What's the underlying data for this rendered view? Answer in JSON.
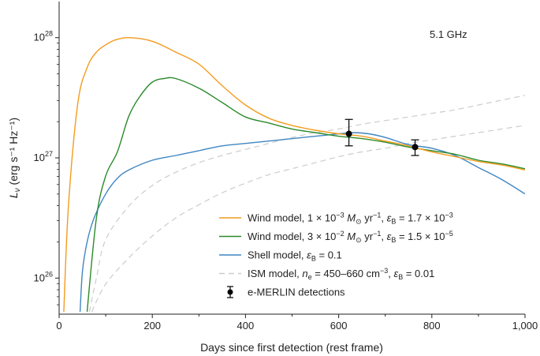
{
  "chart_data": {
    "type": "line",
    "annotation": "5.1 GHz",
    "xlabel": "Days since first detection (rest frame)",
    "ylabel": "Lν (erg s⁻¹ Hz⁻¹)",
    "ylabel_main": "L",
    "ylabel_sub": "ν",
    "ylabel_units": " (erg s⁻¹ Hz⁻¹)",
    "xlim": [
      0,
      1000
    ],
    "ylim_log10": [
      25.7,
      28.3
    ],
    "yscale": "log",
    "xticks": [
      0,
      200,
      400,
      600,
      800,
      1000
    ],
    "xtick_labels": [
      "0",
      "200",
      "400",
      "600",
      "800",
      "1,000"
    ],
    "yticks": [
      {
        "base": "10",
        "exp": "26",
        "log": 26
      },
      {
        "base": "10",
        "exp": "27",
        "log": 27
      },
      {
        "base": "10",
        "exp": "28",
        "log": 28
      }
    ],
    "series": [
      {
        "name": "wind1",
        "color": "#f39c1f",
        "dash": "solid",
        "points": [
          [
            10,
            25.72
          ],
          [
            20,
            26.6
          ],
          [
            40,
            27.45
          ],
          [
            60,
            27.75
          ],
          [
            80,
            27.88
          ],
          [
            100,
            27.94
          ],
          [
            120,
            27.98
          ],
          [
            150,
            28.0
          ],
          [
            200,
            27.97
          ],
          [
            250,
            27.88
          ],
          [
            300,
            27.78
          ],
          [
            350,
            27.6
          ],
          [
            400,
            27.44
          ],
          [
            450,
            27.33
          ],
          [
            500,
            27.27
          ],
          [
            550,
            27.23
          ],
          [
            600,
            27.2
          ],
          [
            650,
            27.18
          ],
          [
            700,
            27.14
          ],
          [
            750,
            27.1
          ],
          [
            800,
            27.05
          ],
          [
            850,
            27.01
          ],
          [
            900,
            26.97
          ],
          [
            950,
            26.94
          ],
          [
            1000,
            26.9
          ]
        ]
      },
      {
        "name": "wind2",
        "color": "#2b8a2b",
        "dash": "solid",
        "points": [
          [
            60,
            25.72
          ],
          [
            80,
            26.5
          ],
          [
            100,
            26.85
          ],
          [
            125,
            27.05
          ],
          [
            150,
            27.35
          ],
          [
            175,
            27.52
          ],
          [
            200,
            27.63
          ],
          [
            225,
            27.66
          ],
          [
            250,
            27.66
          ],
          [
            300,
            27.58
          ],
          [
            350,
            27.46
          ],
          [
            400,
            27.34
          ],
          [
            450,
            27.29
          ],
          [
            500,
            27.24
          ],
          [
            550,
            27.21
          ],
          [
            600,
            27.18
          ],
          [
            650,
            27.16
          ],
          [
            700,
            27.13
          ],
          [
            750,
            27.09
          ],
          [
            800,
            27.06
          ],
          [
            850,
            27.03
          ],
          [
            900,
            26.98
          ],
          [
            950,
            26.95
          ],
          [
            1000,
            26.91
          ]
        ]
      },
      {
        "name": "shell",
        "color": "#3f86c2",
        "dash": "solid",
        "points": [
          [
            45,
            25.72
          ],
          [
            50,
            26.05
          ],
          [
            60,
            26.3
          ],
          [
            75,
            26.5
          ],
          [
            100,
            26.7
          ],
          [
            125,
            26.83
          ],
          [
            150,
            26.9
          ],
          [
            200,
            26.98
          ],
          [
            250,
            27.02
          ],
          [
            300,
            27.06
          ],
          [
            350,
            27.1
          ],
          [
            400,
            27.12
          ],
          [
            450,
            27.14
          ],
          [
            500,
            27.16
          ],
          [
            550,
            27.18
          ],
          [
            600,
            27.2
          ],
          [
            630,
            27.21
          ],
          [
            665,
            27.2
          ],
          [
            700,
            27.17
          ],
          [
            750,
            27.11
          ],
          [
            800,
            27.08
          ],
          [
            850,
            27.02
          ],
          [
            900,
            26.92
          ],
          [
            950,
            26.82
          ],
          [
            1000,
            26.7
          ]
        ]
      },
      {
        "name": "ism1",
        "color": "#cccccc",
        "dash": "dashed",
        "points": [
          [
            65,
            25.72
          ],
          [
            80,
            26.0
          ],
          [
            100,
            26.32
          ],
          [
            150,
            26.6
          ],
          [
            200,
            26.77
          ],
          [
            250,
            26.88
          ],
          [
            300,
            26.96
          ],
          [
            350,
            27.02
          ],
          [
            400,
            27.07
          ],
          [
            450,
            27.12
          ],
          [
            500,
            27.17
          ],
          [
            550,
            27.21
          ],
          [
            600,
            27.24
          ],
          [
            650,
            27.28
          ],
          [
            700,
            27.31
          ],
          [
            750,
            27.34
          ],
          [
            800,
            27.37
          ],
          [
            850,
            27.4
          ],
          [
            900,
            27.44
          ],
          [
            950,
            27.48
          ],
          [
            1000,
            27.52
          ]
        ]
      },
      {
        "name": "ism2",
        "color": "#cccccc",
        "dash": "dashed",
        "points": [
          [
            70,
            25.72
          ],
          [
            100,
            25.95
          ],
          [
            150,
            26.17
          ],
          [
            200,
            26.35
          ],
          [
            250,
            26.5
          ],
          [
            300,
            26.61
          ],
          [
            350,
            26.71
          ],
          [
            400,
            26.79
          ],
          [
            450,
            26.86
          ],
          [
            500,
            26.91
          ],
          [
            550,
            26.96
          ],
          [
            600,
            27.01
          ],
          [
            650,
            27.05
          ],
          [
            700,
            27.08
          ],
          [
            750,
            27.12
          ],
          [
            800,
            27.15
          ],
          [
            850,
            27.18
          ],
          [
            900,
            27.21
          ],
          [
            950,
            27.24
          ],
          [
            1000,
            27.27
          ]
        ]
      }
    ],
    "detections": [
      {
        "x": 622,
        "y": 27.2,
        "y_lo": 27.1,
        "y_hi": 27.32
      },
      {
        "x": 764,
        "y": 27.09,
        "y_lo": 27.02,
        "y_hi": 27.15
      }
    ],
    "legend_position": "lower-right",
    "legend": [
      {
        "key": "wind1",
        "color": "#f39c1f",
        "style": "line",
        "text": "Wind model, 1 × 10⁻³ M⊙ yr⁻¹, εB = 1.7 × 10⁻³",
        "parts": [
          {
            "t": "Wind model, 1 × 10"
          },
          {
            "t": "−3",
            "sup": true
          },
          {
            "t": " "
          },
          {
            "t": "M",
            "it": true
          },
          {
            "t": "⊙",
            "sub": true
          },
          {
            "t": " yr"
          },
          {
            "t": "−1",
            "sup": true
          },
          {
            "t": ", "
          },
          {
            "t": "ε",
            "it": true
          },
          {
            "t": "B",
            "sub": true
          },
          {
            "t": " = 1.7 × 10"
          },
          {
            "t": "−3",
            "sup": true
          }
        ]
      },
      {
        "key": "wind2",
        "color": "#2b8a2b",
        "style": "line",
        "text": "Wind model, 3 × 10⁻² M⊙ yr⁻¹, εB = 1.5 × 10⁻⁵",
        "parts": [
          {
            "t": "Wind model, 3 × 10"
          },
          {
            "t": "−2",
            "sup": true
          },
          {
            "t": " "
          },
          {
            "t": "M",
            "it": true
          },
          {
            "t": "⊙",
            "sub": true
          },
          {
            "t": " yr"
          },
          {
            "t": "−1",
            "sup": true
          },
          {
            "t": ", "
          },
          {
            "t": "ε",
            "it": true
          },
          {
            "t": "B",
            "sub": true
          },
          {
            "t": " = 1.5 × 10"
          },
          {
            "t": "−5",
            "sup": true
          }
        ]
      },
      {
        "key": "shell",
        "color": "#3f86c2",
        "style": "line",
        "text": "Shell model, εB = 0.1",
        "parts": [
          {
            "t": "Shell model, "
          },
          {
            "t": "ε",
            "it": true
          },
          {
            "t": "B",
            "sub": true
          },
          {
            "t": " = 0.1"
          }
        ]
      },
      {
        "key": "ism",
        "color": "#cccccc",
        "style": "dashed",
        "text": "ISM model, ne = 450–660 cm⁻³, εB = 0.01",
        "parts": [
          {
            "t": "ISM model, "
          },
          {
            "t": "n",
            "it": true
          },
          {
            "t": "e",
            "sub": true
          },
          {
            "t": " = 450–660 cm"
          },
          {
            "t": "−3",
            "sup": true
          },
          {
            "t": ", "
          },
          {
            "t": "ε",
            "it": true
          },
          {
            "t": "B",
            "sub": true
          },
          {
            "t": " = 0.01"
          }
        ]
      },
      {
        "key": "detections",
        "color": "#000000",
        "style": "errorbar",
        "text": "e-MERLIN detections",
        "parts": [
          {
            "t": "e-MERLIN detections"
          }
        ]
      }
    ]
  }
}
